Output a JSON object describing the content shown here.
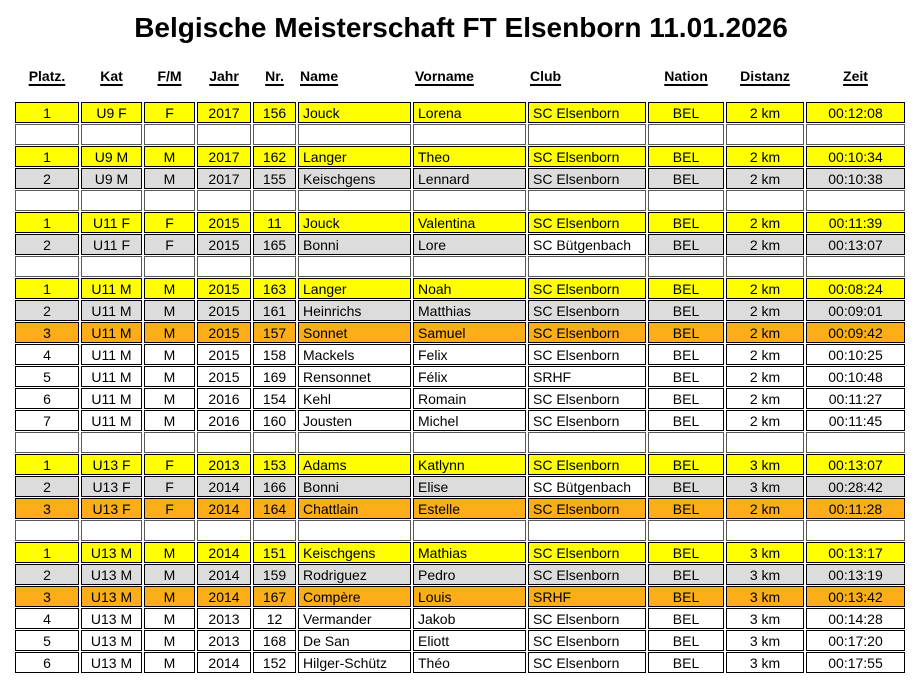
{
  "page": {
    "title": "Belgische Meisterschaft FT Elsenborn 11.01.2026"
  },
  "colors": {
    "gold": "#FFFF00",
    "silver": "#DCDCDC",
    "bronze": "#FBAE17",
    "none": "#FFFFFF",
    "border": "#000000"
  },
  "table": {
    "columns": [
      {
        "key": "platz",
        "label": "Platz."
      },
      {
        "key": "kat",
        "label": "Kat"
      },
      {
        "key": "fm",
        "label": "F/M"
      },
      {
        "key": "jahr",
        "label": "Jahr"
      },
      {
        "key": "nr",
        "label": "Nr."
      },
      {
        "key": "name",
        "label": "Name"
      },
      {
        "key": "vorname",
        "label": "Vorname"
      },
      {
        "key": "club",
        "label": "Club"
      },
      {
        "key": "nation",
        "label": "Nation"
      },
      {
        "key": "distanz",
        "label": "Distanz"
      },
      {
        "key": "zeit",
        "label": "Zeit"
      }
    ],
    "groups": [
      {
        "category": "U9 F",
        "rows": [
          {
            "platz": "1",
            "kat": "U9 F",
            "fm": "F",
            "jahr": "2017",
            "nr": "156",
            "name": "Jouck",
            "vorname": "Lorena",
            "club": "SC Elsenborn",
            "nation": "BEL",
            "distanz": "2 km",
            "zeit": "00:12:08",
            "medal": "gold"
          }
        ]
      },
      {
        "category": "U9 M",
        "rows": [
          {
            "platz": "1",
            "kat": "U9 M",
            "fm": "M",
            "jahr": "2017",
            "nr": "162",
            "name": "Langer",
            "vorname": "Theo",
            "club": "SC Elsenborn",
            "nation": "BEL",
            "distanz": "2 km",
            "zeit": "00:10:34",
            "medal": "gold"
          },
          {
            "platz": "2",
            "kat": "U9 M",
            "fm": "M",
            "jahr": "2017",
            "nr": "155",
            "name": "Keischgens",
            "vorname": "Lennard",
            "club": "SC Elsenborn",
            "nation": "BEL",
            "distanz": "2 km",
            "zeit": "00:10:38",
            "medal": "silver"
          }
        ]
      },
      {
        "category": "U11 F",
        "rows": [
          {
            "platz": "1",
            "kat": "U11 F",
            "fm": "F",
            "jahr": "2015",
            "nr": "11",
            "name": "Jouck",
            "vorname": "Valentina",
            "club": "SC Elsenborn",
            "nation": "BEL",
            "distanz": "2 km",
            "zeit": "00:11:39",
            "medal": "gold"
          },
          {
            "platz": "2",
            "kat": "U11 F",
            "fm": "F",
            "jahr": "2015",
            "nr": "165",
            "name": "Bonni",
            "vorname": "Lore",
            "club": "SC Bütgenbach",
            "nation": "BEL",
            "distanz": "2 km",
            "zeit": "00:13:07",
            "medal": "silver",
            "club_unfilled": true
          }
        ]
      },
      {
        "category": "U11 M",
        "rows": [
          {
            "platz": "1",
            "kat": "U11 M",
            "fm": "M",
            "jahr": "2015",
            "nr": "163",
            "name": "Langer",
            "vorname": "Noah",
            "club": "SC Elsenborn",
            "nation": "BEL",
            "distanz": "2 km",
            "zeit": "00:08:24",
            "medal": "gold"
          },
          {
            "platz": "2",
            "kat": "U11 M",
            "fm": "M",
            "jahr": "2015",
            "nr": "161",
            "name": "Heinrichs",
            "vorname": "Matthias",
            "club": "SC Elsenborn",
            "nation": "BEL",
            "distanz": "2 km",
            "zeit": "00:09:01",
            "medal": "silver"
          },
          {
            "platz": "3",
            "kat": "U11 M",
            "fm": "M",
            "jahr": "2015",
            "nr": "157",
            "name": "Sonnet",
            "vorname": "Samuel",
            "club": "SC Elsenborn",
            "nation": "BEL",
            "distanz": "2 km",
            "zeit": "00:09:42",
            "medal": "bronze"
          },
          {
            "platz": "4",
            "kat": "U11 M",
            "fm": "M",
            "jahr": "2015",
            "nr": "158",
            "name": "Mackels",
            "vorname": "Felix",
            "club": "SC Elsenborn",
            "nation": "BEL",
            "distanz": "2 km",
            "zeit": "00:10:25",
            "medal": "none"
          },
          {
            "platz": "5",
            "kat": "U11 M",
            "fm": "M",
            "jahr": "2015",
            "nr": "169",
            "name": "Rensonnet",
            "vorname": "Félix",
            "club": "SRHF",
            "nation": "BEL",
            "distanz": "2 km",
            "zeit": "00:10:48",
            "medal": "none"
          },
          {
            "platz": "6",
            "kat": "U11 M",
            "fm": "M",
            "jahr": "2016",
            "nr": "154",
            "name": "Kehl",
            "vorname": "Romain",
            "club": "SC Elsenborn",
            "nation": "BEL",
            "distanz": "2 km",
            "zeit": "00:11:27",
            "medal": "none"
          },
          {
            "platz": "7",
            "kat": "U11 M",
            "fm": "M",
            "jahr": "2016",
            "nr": "160",
            "name": "Jousten",
            "vorname": "Michel",
            "club": "SC Elsenborn",
            "nation": "BEL",
            "distanz": "2 km",
            "zeit": "00:11:45",
            "medal": "none"
          }
        ]
      },
      {
        "category": "U13 F",
        "rows": [
          {
            "platz": "1",
            "kat": "U13 F",
            "fm": "F",
            "jahr": "2013",
            "nr": "153",
            "name": "Adams",
            "vorname": "Katlynn",
            "club": "SC Elsenborn",
            "nation": "BEL",
            "distanz": "3 km",
            "zeit": "00:13:07",
            "medal": "gold"
          },
          {
            "platz": "2",
            "kat": "U13 F",
            "fm": "F",
            "jahr": "2014",
            "nr": "166",
            "name": "Bonni",
            "vorname": "Elise",
            "club": "SC Bütgenbach",
            "nation": "BEL",
            "distanz": "3 km",
            "zeit": "00:28:42",
            "medal": "silver",
            "club_unfilled": true
          },
          {
            "platz": "3",
            "kat": "U13 F",
            "fm": "F",
            "jahr": "2014",
            "nr": "164",
            "name": "Chattlain",
            "vorname": "Estelle",
            "club": "SC Elsenborn",
            "nation": "BEL",
            "distanz": "2 km",
            "zeit": "00:11:28",
            "medal": "bronze"
          }
        ]
      },
      {
        "category": "U13 M",
        "rows": [
          {
            "platz": "1",
            "kat": "U13 M",
            "fm": "M",
            "jahr": "2014",
            "nr": "151",
            "name": "Keischgens",
            "vorname": "Mathias",
            "club": "SC Elsenborn",
            "nation": "BEL",
            "distanz": "3 km",
            "zeit": "00:13:17",
            "medal": "gold"
          },
          {
            "platz": "2",
            "kat": "U13 M",
            "fm": "M",
            "jahr": "2014",
            "nr": "159",
            "name": "Rodriguez",
            "vorname": "Pedro",
            "club": "SC Elsenborn",
            "nation": "BEL",
            "distanz": "3 km",
            "zeit": "00:13:19",
            "medal": "silver"
          },
          {
            "platz": "3",
            "kat": "U13 M",
            "fm": "M",
            "jahr": "2014",
            "nr": "167",
            "name": "Compère",
            "vorname": "Louis",
            "club": "SRHF",
            "nation": "BEL",
            "distanz": "3 km",
            "zeit": "00:13:42",
            "medal": "bronze"
          },
          {
            "platz": "4",
            "kat": "U13 M",
            "fm": "M",
            "jahr": "2013",
            "nr": "12",
            "name": "Vermander",
            "vorname": "Jakob",
            "club": "SC Elsenborn",
            "nation": "BEL",
            "distanz": "3 km",
            "zeit": "00:14:28",
            "medal": "none"
          },
          {
            "platz": "5",
            "kat": "U13 M",
            "fm": "M",
            "jahr": "2013",
            "nr": "168",
            "name": "De San",
            "vorname": "Eliott",
            "club": "SC Elsenborn",
            "nation": "BEL",
            "distanz": "3 km",
            "zeit": "00:17:20",
            "medal": "none"
          },
          {
            "platz": "6",
            "kat": "U13 M",
            "fm": "M",
            "jahr": "2014",
            "nr": "152",
            "name": "Hilger-Schütz",
            "vorname": "Théo",
            "club": "SC Elsenborn",
            "nation": "BEL",
            "distanz": "3 km",
            "zeit": "00:17:55",
            "medal": "none"
          }
        ]
      }
    ]
  }
}
